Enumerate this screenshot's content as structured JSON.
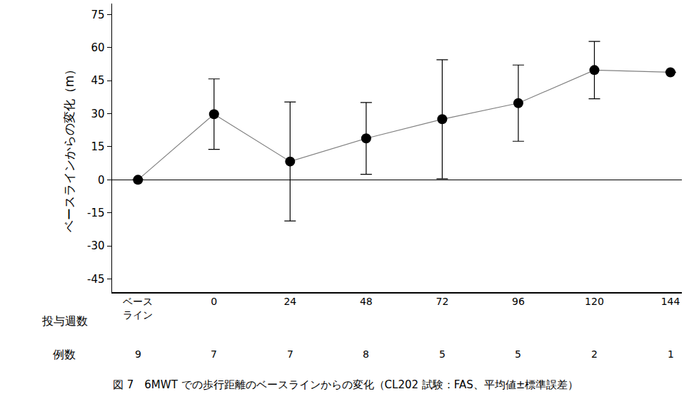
{
  "chart_data": {
    "type": "line",
    "y_label": "ベースラインからの変化（m）",
    "x_label": "投与週数",
    "categories": [
      "ベース\nライン",
      "0",
      "24",
      "48",
      "72",
      "96",
      "120",
      "144"
    ],
    "values": [
      0,
      29.8,
      8.3,
      18.8,
      27.5,
      34.8,
      49.8,
      48.8
    ],
    "standard_error": [
      null,
      16,
      27,
      16.3,
      27,
      17.3,
      13,
      null
    ],
    "count_label": "例数",
    "counts": [
      9,
      7,
      7,
      8,
      5,
      5,
      2,
      1
    ],
    "caption": "図 7　6MWT での歩行距離のベースラインからの変化（CL202 試験：FAS、平均値±標準誤差）",
    "color": "#000000",
    "ylim": [
      -51,
      80
    ],
    "yticks": [
      -45,
      -30,
      -15,
      0,
      15,
      30,
      45,
      60,
      75
    ],
    "grid": false,
    "marker": "circle",
    "line_style": "solid"
  }
}
